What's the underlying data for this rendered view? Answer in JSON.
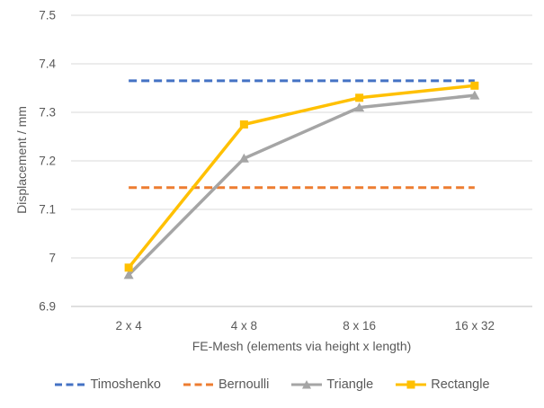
{
  "chart": {
    "background_color": "#FFFFFF",
    "text_color": "#595959",
    "gridline_color": "#D9D9D9",
    "axis_line_color": "#BFBFBF"
  },
  "chart_data": {
    "type": "line",
    "title": "",
    "xlabel": "FE-Mesh (elements via height x length)",
    "ylabel": "Displacement / mm",
    "categories": [
      "2 x 4",
      "4 x 8",
      "8 x 16",
      "16 x 32"
    ],
    "ylim": [
      6.9,
      7.5
    ],
    "ytick_values": [
      6.9,
      7.0,
      7.1,
      7.2,
      7.3,
      7.4,
      7.5
    ],
    "ytick_labels": [
      "6.9",
      "7",
      "7.1",
      "7.2",
      "7.3",
      "7.4",
      "7.5"
    ],
    "grid": "horizontal",
    "legend_position": "bottom",
    "series": [
      {
        "name": "Timoshenko",
        "color": "#4472C4",
        "style": "dashed",
        "marker": "none",
        "values": [
          7.365,
          7.365,
          7.365,
          7.365
        ]
      },
      {
        "name": "Bernoulli",
        "color": "#ED7D31",
        "style": "dashed",
        "marker": "none",
        "values": [
          7.145,
          7.145,
          7.145,
          7.145
        ]
      },
      {
        "name": "Triangle",
        "color": "#A5A5A5",
        "style": "solid",
        "marker": "triangle",
        "values": [
          6.965,
          7.205,
          7.31,
          7.335
        ]
      },
      {
        "name": "Rectangle",
        "color": "#FFC000",
        "style": "solid",
        "marker": "square",
        "values": [
          6.98,
          7.275,
          7.33,
          7.355
        ]
      }
    ]
  }
}
